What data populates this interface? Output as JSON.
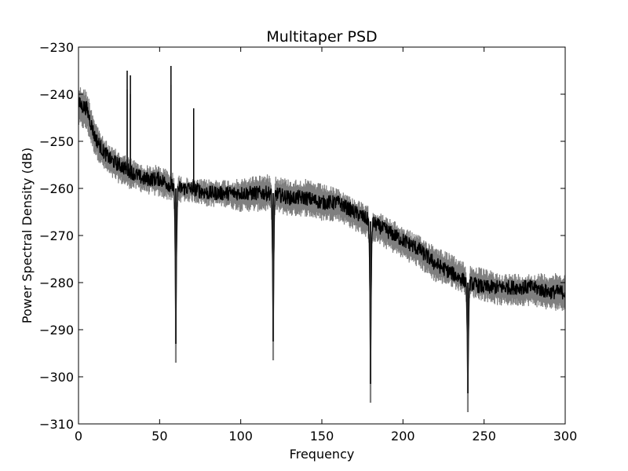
{
  "chart_data": {
    "type": "line",
    "title": "Multitaper PSD",
    "xlabel": "Frequency",
    "ylabel": "Power Spectral Density (dB)",
    "xlim": [
      0,
      300
    ],
    "ylim": [
      -310,
      -230
    ],
    "xticks": [
      0,
      50,
      100,
      150,
      200,
      250,
      300
    ],
    "yticks": [
      -230,
      -240,
      -250,
      -260,
      -270,
      -280,
      -290,
      -300,
      -310
    ],
    "xtick_labels": [
      "0",
      "50",
      "100",
      "150",
      "200",
      "250",
      "300"
    ],
    "ytick_labels": [
      "−230",
      "−240",
      "−250",
      "−260",
      "−270",
      "−280",
      "−290",
      "−300",
      "−310"
    ],
    "grid": false,
    "legend": "none",
    "series": [
      {
        "role": "confidence band",
        "color": "#7f7f7f",
        "x": [
          0,
          5,
          10,
          15,
          20,
          25,
          30,
          40,
          50,
          60,
          70,
          80,
          90,
          100,
          110,
          120,
          130,
          140,
          150,
          160,
          170,
          180,
          190,
          200,
          210,
          220,
          230,
          240,
          250,
          260,
          270,
          280,
          290,
          300
        ],
        "upper": [
          -238,
          -239,
          -245,
          -249,
          -251,
          -252,
          -253,
          -255,
          -255,
          -257,
          -258,
          -258,
          -258,
          -258,
          -257,
          -257,
          -258,
          -258,
          -259,
          -260,
          -262,
          -264,
          -266,
          -268,
          -270,
          -272,
          -274,
          -276,
          -277,
          -278,
          -278,
          -278,
          -278,
          -278
        ],
        "lower": [
          -247,
          -248,
          -253,
          -256,
          -258,
          -259,
          -260,
          -261,
          -262,
          -263,
          -263,
          -264,
          -264,
          -265,
          -265,
          -265,
          -266,
          -266,
          -267,
          -267,
          -269,
          -271,
          -273,
          -275,
          -277,
          -280,
          -281,
          -283,
          -284,
          -285,
          -285,
          -285,
          -286,
          -286
        ]
      },
      {
        "role": "estimate",
        "color": "#000000",
        "x": [
          0,
          5,
          10,
          15,
          20,
          25,
          30,
          40,
          50,
          60,
          70,
          80,
          90,
          100,
          110,
          120,
          130,
          140,
          150,
          160,
          170,
          180,
          190,
          200,
          210,
          220,
          230,
          240,
          250,
          260,
          270,
          280,
          290,
          300
        ],
        "y": [
          -242,
          -243,
          -249,
          -252,
          -254,
          -255,
          -256,
          -258,
          -258,
          -260,
          -260,
          -261,
          -261,
          -261,
          -261,
          -261,
          -262,
          -262,
          -263,
          -263,
          -265,
          -267,
          -269,
          -271,
          -273,
          -276,
          -278,
          -280,
          -281,
          -281,
          -281,
          -281,
          -282,
          -282
        ]
      }
    ],
    "spikes": [
      {
        "x": 30,
        "top": -239,
        "direction": "up"
      },
      {
        "x": 32,
        "top": -240,
        "direction": "up"
      },
      {
        "x": 57,
        "top": -238,
        "direction": "up"
      },
      {
        "x": 71,
        "top": -247,
        "direction": "up"
      }
    ],
    "notches": [
      {
        "x": 60,
        "bottom": -297
      },
      {
        "x": 120,
        "bottom": -296.5
      },
      {
        "x": 180,
        "bottom": -305.5
      },
      {
        "x": 240,
        "bottom": -307.5
      }
    ]
  }
}
